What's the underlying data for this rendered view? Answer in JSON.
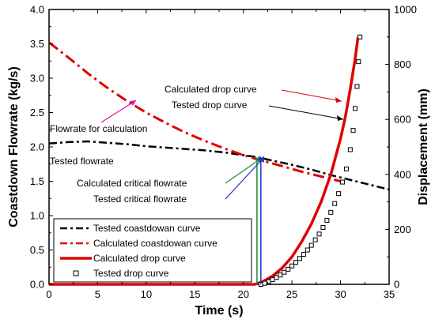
{
  "chart_data": {
    "type": "line",
    "xlabel": "Time (s)",
    "ylabel": "Coastdown Flowrate (kg/s)",
    "y2label": "Displacement (mm)",
    "xlim": [
      0,
      35
    ],
    "ylim": [
      0,
      4.0
    ],
    "y2lim": [
      0,
      1000
    ],
    "xticks": [
      "0",
      "5",
      "10",
      "15",
      "20",
      "25",
      "30",
      "35"
    ],
    "yticks": [
      "0.0",
      "0.5",
      "1.0",
      "1.5",
      "2.0",
      "2.5",
      "3.0",
      "3.5",
      "4.0"
    ],
    "y2ticks": [
      "0",
      "200",
      "400",
      "600",
      "800",
      "1000"
    ],
    "grid": false,
    "legend_position": "bottom-left",
    "series": [
      {
        "name": "Tested coastdowan curve",
        "axis": "left",
        "style": "dash-dot",
        "color": "#000000",
        "x": [
          0,
          2,
          4,
          6,
          8,
          10,
          12,
          14,
          16,
          18,
          20,
          21.5,
          23,
          25,
          27,
          29,
          31,
          33,
          35
        ],
        "y": [
          2.05,
          2.07,
          2.08,
          2.06,
          2.04,
          2.01,
          1.99,
          1.97,
          1.95,
          1.92,
          1.88,
          1.85,
          1.8,
          1.74,
          1.67,
          1.59,
          1.52,
          1.45,
          1.38
        ]
      },
      {
        "name": "Calculated coastdowan curve",
        "axis": "left",
        "style": "dash-dot",
        "color": "#e00000",
        "x": [
          0,
          2,
          4,
          6,
          8,
          10,
          12,
          14,
          16,
          18,
          20,
          22,
          24,
          26,
          28,
          30
        ],
        "y": [
          3.52,
          3.3,
          3.07,
          2.86,
          2.67,
          2.5,
          2.35,
          2.21,
          2.09,
          1.98,
          1.88,
          1.8,
          1.72,
          1.64,
          1.57,
          1.5
        ]
      },
      {
        "name": "Calculated drop curve",
        "axis": "right",
        "style": "solid",
        "color": "#e00000",
        "x": [
          0,
          21.2,
          22,
          23,
          24,
          25,
          26,
          27,
          28,
          29,
          30,
          30.5,
          31,
          31.5,
          31.8
        ],
        "y": [
          0,
          0,
          10,
          30,
          60,
          100,
          155,
          220,
          300,
          400,
          530,
          610,
          710,
          820,
          900
        ]
      },
      {
        "name": "Tested drop curve",
        "axis": "right",
        "style": "markers",
        "color": "#000000",
        "x": [
          21.8,
          22.2,
          22.6,
          23,
          23.4,
          23.8,
          24.2,
          24.6,
          25,
          25.4,
          25.8,
          26.2,
          26.6,
          27,
          27.4,
          27.8,
          28.2,
          28.6,
          29,
          29.4,
          29.8,
          30.2,
          30.6,
          31,
          31.3,
          31.5,
          31.7,
          31.85,
          32
        ],
        "y": [
          0,
          4,
          10,
          17,
          25,
          34,
          44,
          55,
          67,
          80,
          94,
          109,
          125,
          142,
          162,
          183,
          207,
          233,
          262,
          294,
          330,
          372,
          420,
          490,
          560,
          640,
          720,
          810,
          900
        ]
      }
    ],
    "vertical_markers": [
      {
        "label": "Calculated critical flowrate",
        "x": 21.4,
        "y": 1.84,
        "color": "#1a8a3a"
      },
      {
        "label": "Tested critical flowrate",
        "x": 21.8,
        "y": 1.84,
        "color": "#1f2fd6"
      }
    ],
    "annotations": {
      "calc_drop": "Calculated drop curve",
      "tested_drop": "Tested drop curve",
      "flow_calc": "Flowrate for calculation",
      "tested_flow": "Tested flowrate",
      "calc_critical": "Calculated critical flowrate",
      "tested_critical": "Tested critical flowrate"
    },
    "colors": {
      "red": "#e00000",
      "black": "#000000",
      "green": "#1a8a3a",
      "blue": "#1f2fd6",
      "pink": "#e0109a"
    }
  }
}
